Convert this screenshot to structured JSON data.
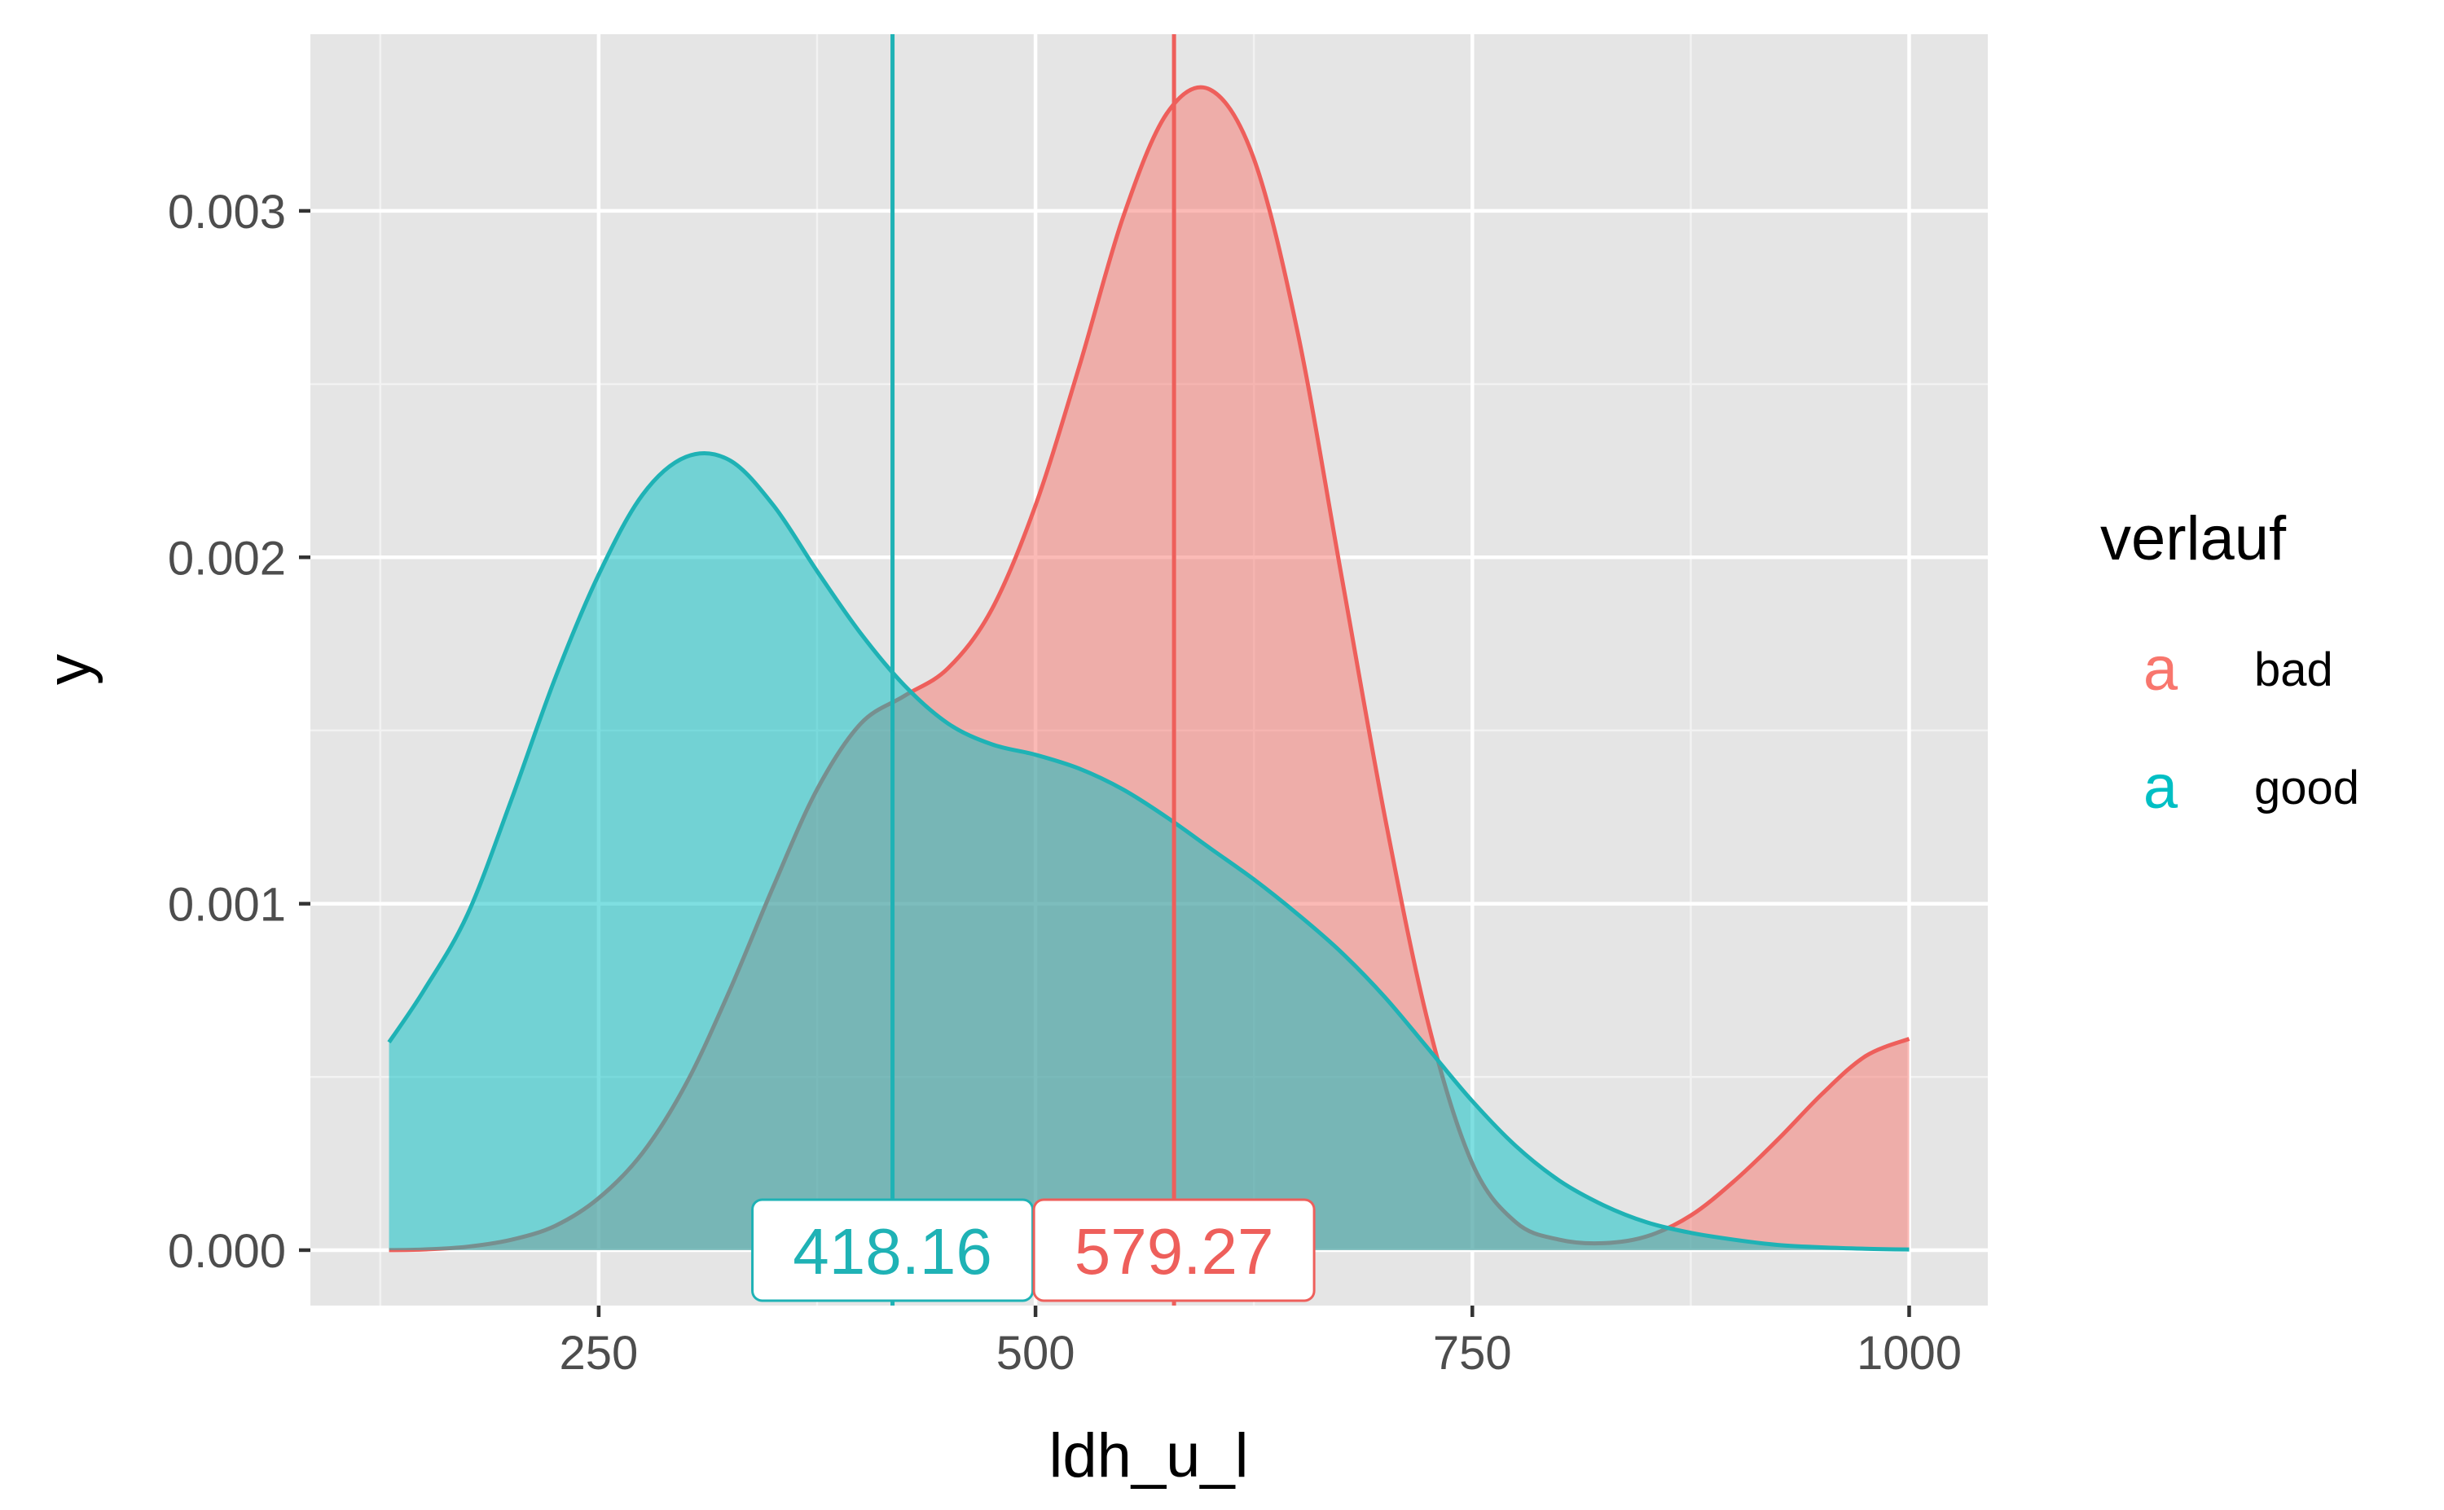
{
  "chart_data": {
    "type": "area",
    "xlabel": "ldh_u_l",
    "ylabel": "y",
    "xlim": [
      85,
      1045
    ],
    "ylim": [
      -0.00016,
      0.00351
    ],
    "x_ticks": [
      250,
      500,
      750,
      1000
    ],
    "x_tick_labels": [
      "250",
      "500",
      "750",
      "1000"
    ],
    "y_ticks": [
      0,
      0.001,
      0.002,
      0.003
    ],
    "y_tick_labels": [
      "0.000",
      "0.001",
      "0.002",
      "0.003"
    ],
    "grid": true,
    "legend": {
      "title": "verlauf",
      "position": "right",
      "key_glyph": "a",
      "entries": [
        {
          "label": "bad",
          "color": "#F8766D"
        },
        {
          "label": "good",
          "color": "#00BFC4"
        }
      ]
    },
    "colors": {
      "bad_line": "#EE5F5B",
      "good_line": "#1FB2B5",
      "bad_fill": "#F8766D",
      "good_fill": "#00BFC4",
      "panel_bg": "#E5E5E5",
      "grid": "#FFFFFF"
    },
    "series": [
      {
        "name": "bad",
        "x": [
          130,
          150,
          175,
          200,
          225,
          250,
          275,
          300,
          325,
          350,
          375,
          400,
          425,
          450,
          475,
          500,
          525,
          550,
          575,
          600,
          625,
          650,
          675,
          700,
          725,
          750,
          775,
          800,
          825,
          850,
          875,
          900,
          925,
          950,
          975,
          1000
        ],
        "y": [
          0.0,
          2e-06,
          1e-05,
          3e-05,
          7e-05,
          0.00015,
          0.00028,
          0.00048,
          0.00075,
          0.00105,
          0.00133,
          0.00152,
          0.0016,
          0.00168,
          0.00185,
          0.00215,
          0.00255,
          0.00298,
          0.00328,
          0.00335,
          0.00315,
          0.00265,
          0.00195,
          0.00125,
          0.00065,
          0.00025,
          8e-05,
          3e-05,
          2e-05,
          4e-05,
          0.0001,
          0.0002,
          0.00032,
          0.00045,
          0.00056,
          0.00061
        ]
      },
      {
        "name": "good",
        "x": [
          130,
          150,
          175,
          200,
          225,
          250,
          275,
          300,
          325,
          350,
          375,
          400,
          425,
          450,
          475,
          500,
          525,
          550,
          575,
          600,
          625,
          650,
          675,
          700,
          725,
          750,
          775,
          800,
          825,
          850,
          875,
          900,
          925,
          950,
          975,
          1000
        ],
        "y": [
          0.0006,
          0.00075,
          0.00097,
          0.0013,
          0.00165,
          0.00195,
          0.00218,
          0.00229,
          0.00228,
          0.00215,
          0.00196,
          0.00178,
          0.00163,
          0.00152,
          0.00146,
          0.00143,
          0.00139,
          0.00133,
          0.00125,
          0.00116,
          0.00107,
          0.00097,
          0.00086,
          0.00073,
          0.00058,
          0.00043,
          0.0003,
          0.0002,
          0.00013,
          8e-05,
          5e-05,
          3e-05,
          1.5e-05,
          8e-06,
          4e-06,
          2e-06
        ]
      }
    ],
    "mean_lines": [
      {
        "series": "good",
        "x": 418.16,
        "label": "418.16",
        "color": "#1FB2B5"
      },
      {
        "series": "bad",
        "x": 579.27,
        "label": "579.27",
        "color": "#EE5F5B"
      }
    ]
  }
}
